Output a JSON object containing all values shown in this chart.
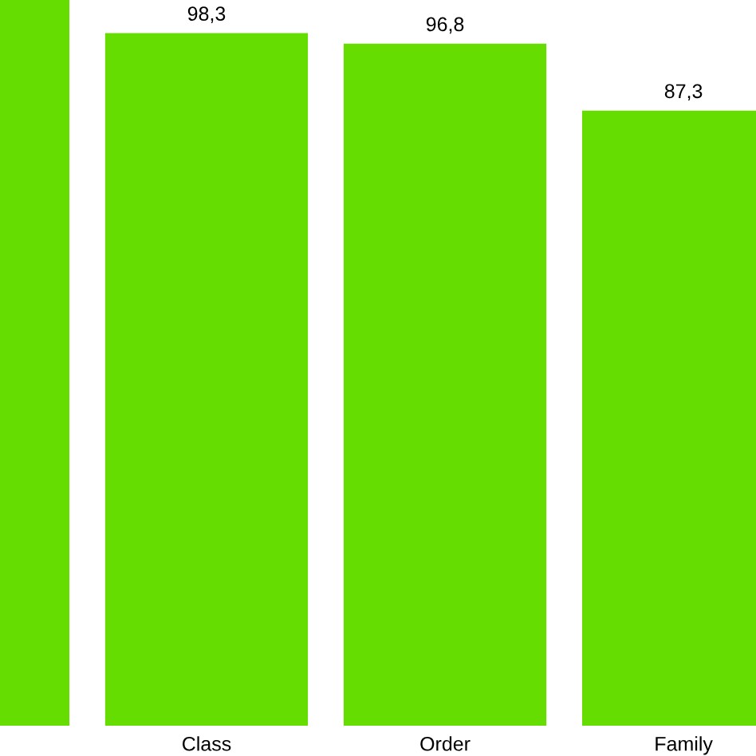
{
  "chart_data": {
    "type": "bar",
    "categories": [
      null,
      "Class",
      "Order",
      "Family"
    ],
    "values": [
      103,
      98.3,
      96.8,
      87.3
    ],
    "value_labels": [
      null,
      "98,3",
      "96,8",
      "87,3"
    ],
    "color": "#66dd00",
    "ylim": [
      0,
      103
    ]
  }
}
